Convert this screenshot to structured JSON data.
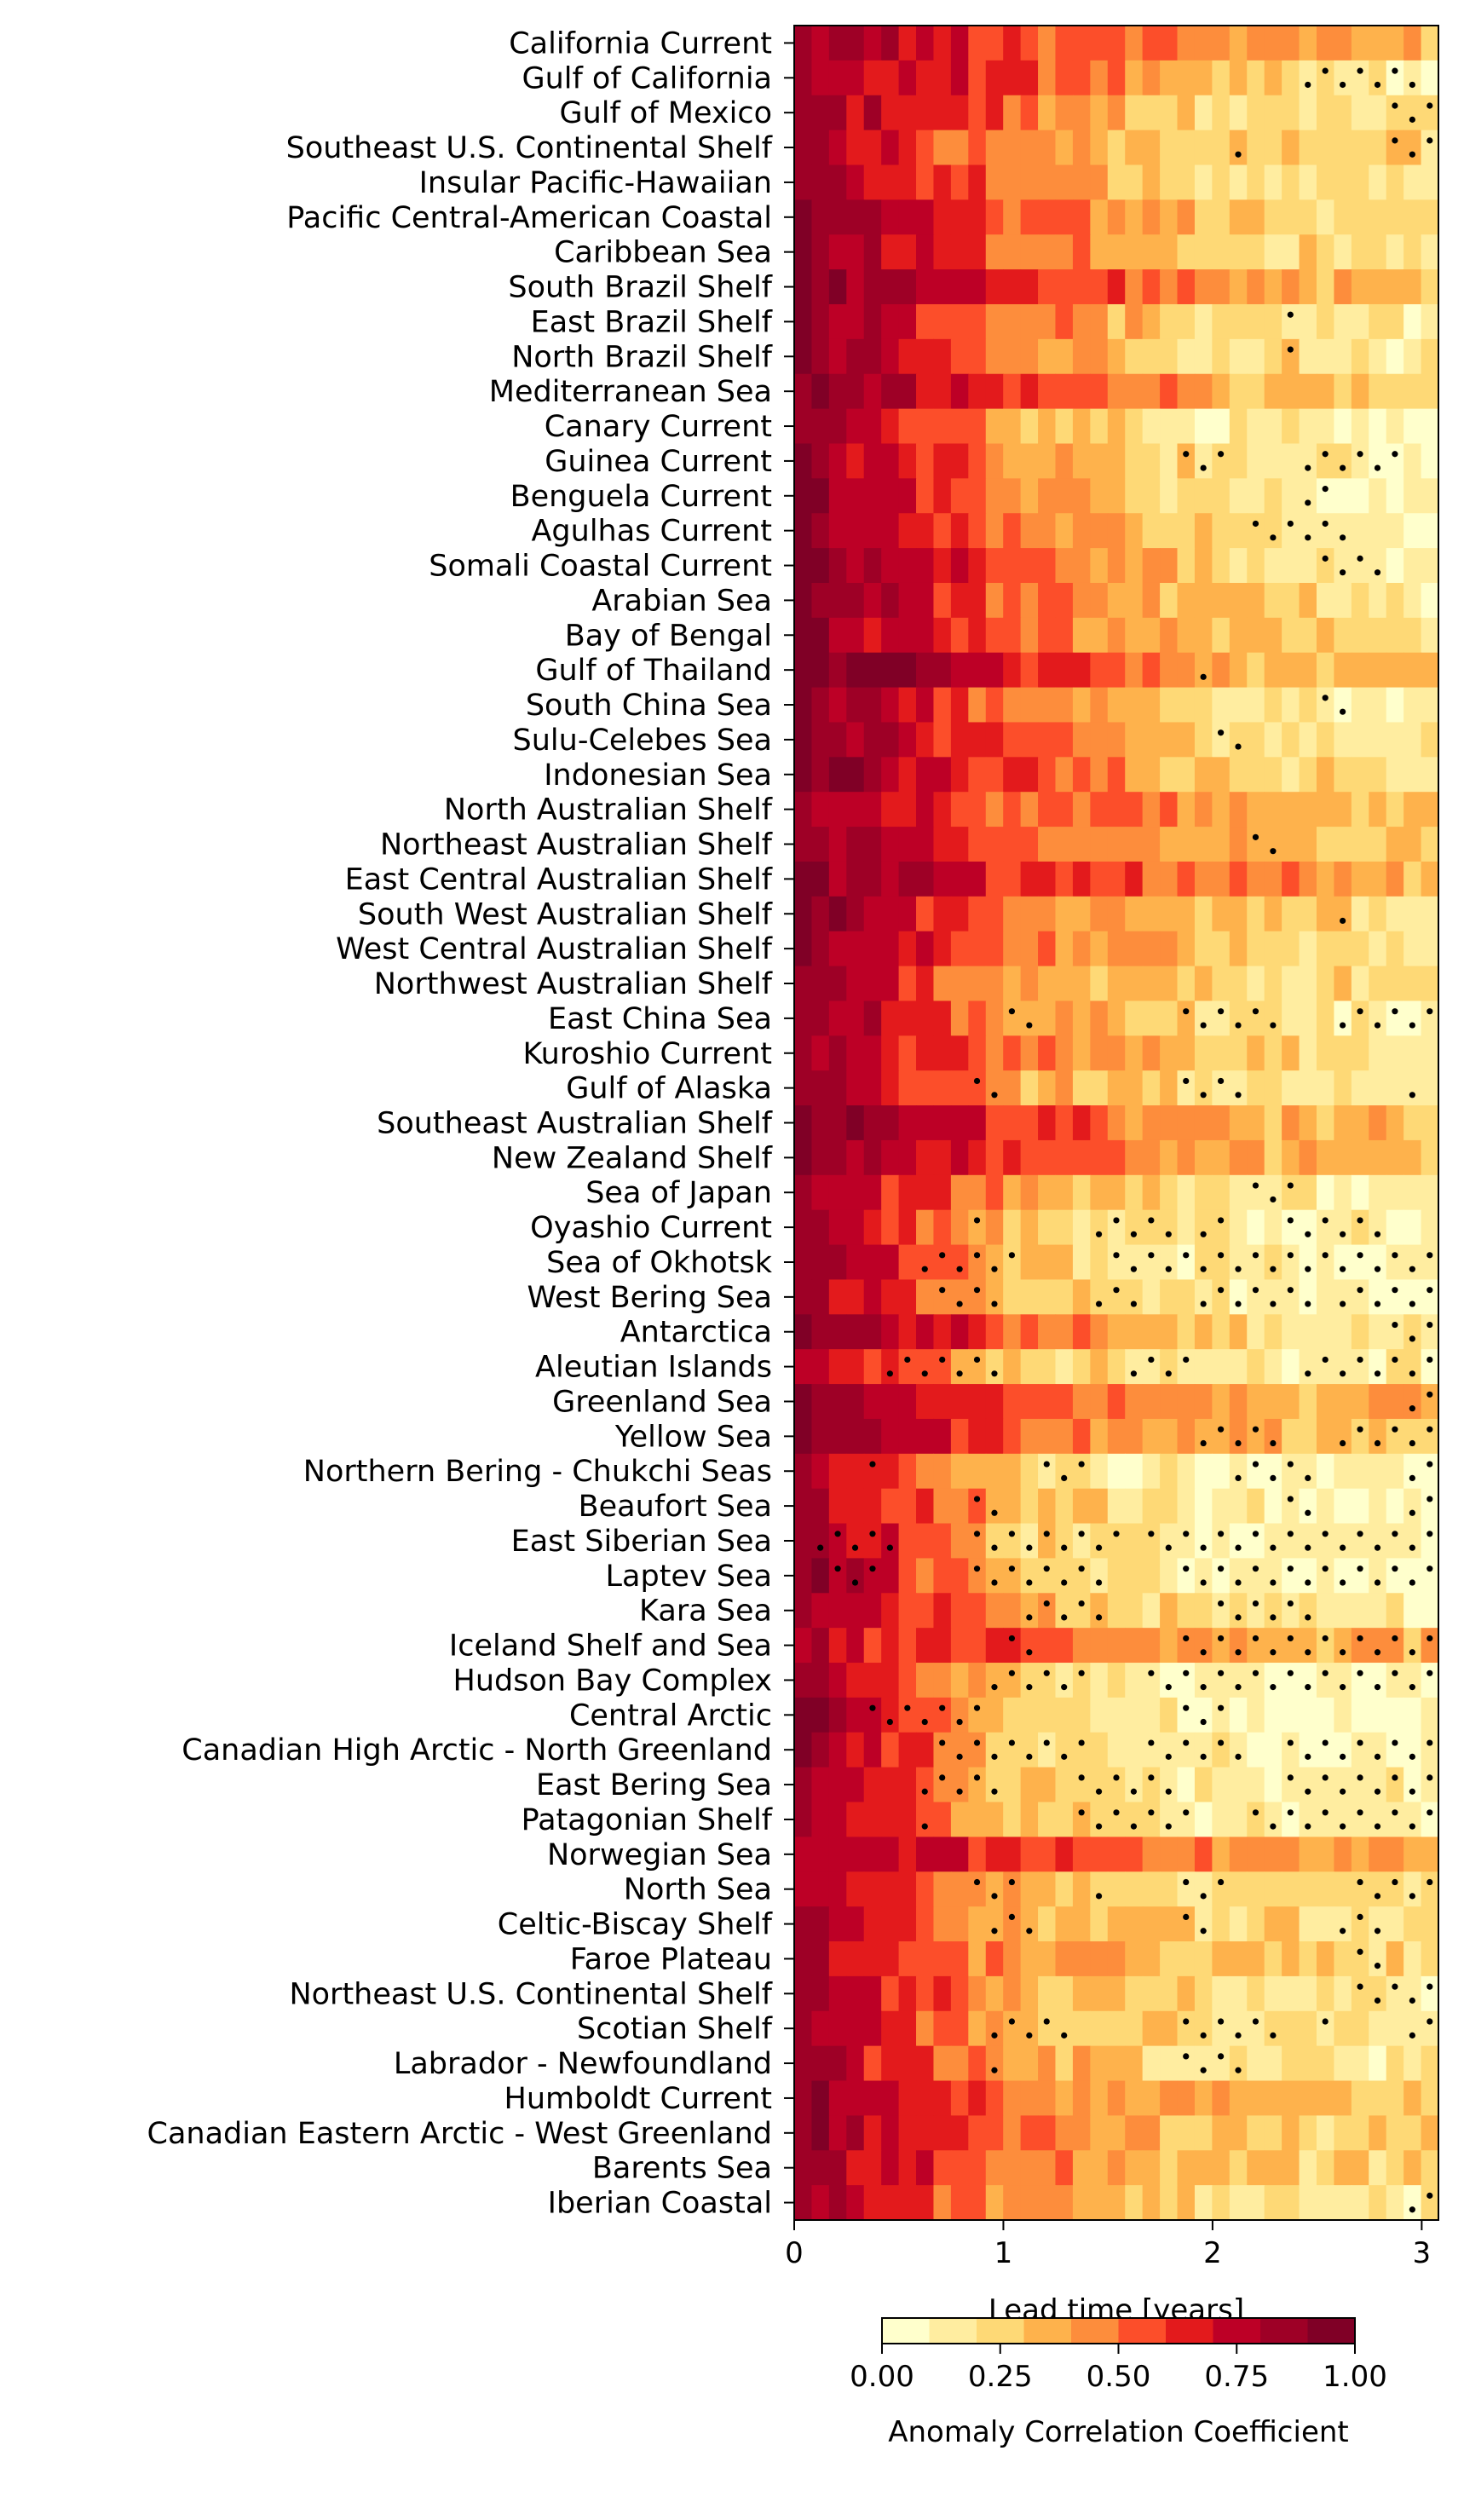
{
  "chart_data": {
    "type": "heatmap",
    "xlabel": "Lead time [years]",
    "x_ticks": [
      0,
      1,
      2,
      3
    ],
    "xlim": [
      0,
      3.08
    ],
    "lead_step_years": 0.0833,
    "colorbar": {
      "label": "Anomaly Correlation Coefficient",
      "ticks": [
        "0.00",
        "0.25",
        "0.50",
        "0.75",
        "1.00"
      ],
      "range": [
        0,
        1
      ],
      "colors": [
        "#ffffcc",
        "#ffeda0",
        "#fed976",
        "#feb24c",
        "#fd8d3c",
        "#fc4e2a",
        "#e31a1c",
        "#bd0026",
        "#9e0026",
        "#800026"
      ]
    },
    "regions": [
      "California Current",
      "Gulf of California",
      "Gulf of Mexico",
      "Southeast U.S. Continental Shelf",
      "Insular Pacific-Hawaiian",
      "Pacific Central-American Coastal",
      "Caribbean Sea",
      "South Brazil Shelf",
      "East Brazil Shelf",
      "North Brazil Shelf",
      "Mediterranean Sea",
      "Canary Current",
      "Guinea Current",
      "Benguela Current",
      "Agulhas Current",
      "Somali Coastal Current",
      "Arabian Sea",
      "Bay of Bengal",
      "Gulf of Thailand",
      "South China Sea",
      "Sulu-Celebes Sea",
      "Indonesian Sea",
      "North Australian Shelf",
      "Northeast Australian Shelf",
      "East Central Australian Shelf",
      "South West Australian Shelf",
      "West Central Australian Shelf",
      "Northwest Australian Shelf",
      "East China Sea",
      "Kuroshio Current",
      "Gulf of Alaska",
      "Southeast Australian Shelf",
      "New Zealand Shelf",
      "Sea of Japan",
      "Oyashio Current",
      "Sea of Okhotsk",
      "West Bering Sea",
      "Antarctica",
      "Aleutian Islands",
      "Greenland Sea",
      "Yellow Sea",
      "Northern Bering - Chukchi Seas",
      "Beaufort Sea",
      "East Siberian Sea",
      "Laptev Sea",
      "Kara Sea",
      "Iceland Shelf and Sea",
      "Hudson Bay Complex",
      "Central Arctic",
      "Canadian High Arctic - North Greenland",
      "East Bering Sea",
      "Patagonian Shelf",
      "Norwegian Sea",
      "North Sea",
      "Celtic-Biscay Shelf",
      "Faroe Plateau",
      "Northeast U.S. Continental Shelf",
      "Scotian Shelf",
      "Labrador - Newfoundland",
      "Humboldt Current",
      "Canadian Eastern Arctic - West Greenland",
      "Barents Sea",
      "Iberian Coastal"
    ],
    "acc_profiles": [
      [
        0.88,
        0.6,
        0.45,
        0.35
      ],
      [
        0.85,
        0.6,
        0.3,
        0.15
      ],
      [
        0.9,
        0.5,
        0.25,
        0.15
      ],
      [
        0.85,
        0.45,
        0.25,
        0.25
      ],
      [
        0.9,
        0.5,
        0.25,
        0.2
      ],
      [
        0.92,
        0.55,
        0.3,
        0.2
      ],
      [
        0.92,
        0.55,
        0.3,
        0.15
      ],
      [
        0.92,
        0.65,
        0.45,
        0.3
      ],
      [
        0.92,
        0.5,
        0.25,
        0.15
      ],
      [
        0.92,
        0.5,
        0.25,
        0.15
      ],
      [
        0.88,
        0.62,
        0.4,
        0.25
      ],
      [
        0.88,
        0.4,
        0.15,
        0.12
      ],
      [
        0.92,
        0.45,
        0.2,
        0.1
      ],
      [
        0.92,
        0.45,
        0.2,
        0.1
      ],
      [
        0.92,
        0.45,
        0.25,
        0.12
      ],
      [
        0.92,
        0.6,
        0.25,
        0.1
      ],
      [
        0.92,
        0.55,
        0.3,
        0.15
      ],
      [
        0.92,
        0.55,
        0.3,
        0.2
      ],
      [
        0.95,
        0.7,
        0.4,
        0.25
      ],
      [
        0.92,
        0.5,
        0.2,
        0.1
      ],
      [
        0.92,
        0.55,
        0.25,
        0.15
      ],
      [
        0.92,
        0.6,
        0.3,
        0.2
      ],
      [
        0.9,
        0.55,
        0.4,
        0.25
      ],
      [
        0.88,
        0.55,
        0.35,
        0.3
      ],
      [
        0.92,
        0.65,
        0.5,
        0.3
      ],
      [
        0.92,
        0.5,
        0.3,
        0.2
      ],
      [
        0.92,
        0.5,
        0.3,
        0.2
      ],
      [
        0.9,
        0.4,
        0.25,
        0.2
      ],
      [
        0.88,
        0.45,
        0.2,
        0.15
      ],
      [
        0.88,
        0.5,
        0.3,
        0.2
      ],
      [
        0.85,
        0.4,
        0.2,
        0.15
      ],
      [
        0.95,
        0.6,
        0.4,
        0.3
      ],
      [
        0.95,
        0.6,
        0.4,
        0.3
      ],
      [
        0.85,
        0.4,
        0.2,
        0.15
      ],
      [
        0.85,
        0.35,
        0.15,
        0.1
      ],
      [
        0.85,
        0.35,
        0.15,
        0.1
      ],
      [
        0.85,
        0.3,
        0.15,
        0.1
      ],
      [
        0.95,
        0.55,
        0.25,
        0.2
      ],
      [
        0.8,
        0.3,
        0.15,
        0.12
      ],
      [
        0.92,
        0.6,
        0.4,
        0.35
      ],
      [
        0.92,
        0.55,
        0.35,
        0.25
      ],
      [
        0.85,
        0.25,
        0.12,
        0.1
      ],
      [
        0.88,
        0.35,
        0.15,
        0.12
      ],
      [
        0.9,
        0.3,
        0.12,
        0.1
      ],
      [
        0.9,
        0.35,
        0.12,
        0.1
      ],
      [
        0.9,
        0.4,
        0.2,
        0.15
      ],
      [
        0.75,
        0.55,
        0.4,
        0.35
      ],
      [
        0.85,
        0.3,
        0.12,
        0.08
      ],
      [
        0.95,
        0.3,
        0.1,
        0.08
      ],
      [
        0.95,
        0.3,
        0.12,
        0.1
      ],
      [
        0.85,
        0.3,
        0.15,
        0.12
      ],
      [
        0.85,
        0.3,
        0.12,
        0.12
      ],
      [
        0.8,
        0.6,
        0.45,
        0.4
      ],
      [
        0.8,
        0.4,
        0.2,
        0.2
      ],
      [
        0.85,
        0.4,
        0.25,
        0.2
      ],
      [
        0.85,
        0.4,
        0.3,
        0.25
      ],
      [
        0.85,
        0.4,
        0.25,
        0.15
      ],
      [
        0.85,
        0.4,
        0.2,
        0.2
      ],
      [
        0.85,
        0.4,
        0.2,
        0.15
      ],
      [
        0.9,
        0.5,
        0.4,
        0.3
      ],
      [
        0.88,
        0.5,
        0.3,
        0.25
      ],
      [
        0.9,
        0.5,
        0.3,
        0.25
      ],
      [
        0.88,
        0.4,
        0.2,
        0.15
      ]
    ],
    "stipple_spans": [
      [],
      [
        [
          2.4,
          3.0
        ]
      ],
      [
        [
          2.8,
          3.08
        ]
      ],
      [
        [
          2.1,
          2.2
        ],
        [
          2.85,
          3.08
        ]
      ],
      [],
      [],
      [],
      [],
      [
        [
          2.3,
          2.4
        ]
      ],
      [
        [
          2.3,
          2.4
        ]
      ],
      [],
      [],
      [
        [
          1.8,
          2.1
        ],
        [
          2.4,
          2.9
        ]
      ],
      [
        [
          2.4,
          2.6
        ]
      ],
      [
        [
          2.2,
          2.7
        ]
      ],
      [
        [
          2.5,
          2.8
        ]
      ],
      [],
      [],
      [
        [
          1.9,
          2.0
        ]
      ],
      [
        [
          2.5,
          2.7
        ]
      ],
      [
        [
          2.0,
          2.2
        ]
      ],
      [],
      [],
      [
        [
          2.2,
          2.3
        ]
      ],
      [],
      [
        [
          2.6,
          2.7
        ]
      ],
      [],
      [],
      [
        [
          1.0,
          1.2
        ],
        [
          1.8,
          2.3
        ],
        [
          2.6,
          3.08
        ]
      ],
      [],
      [
        [
          0.8,
          1.0
        ],
        [
          1.8,
          2.2
        ],
        [
          2.9,
          3.0
        ]
      ],
      [],
      [],
      [
        [
          2.2,
          2.4
        ]
      ],
      [
        [
          0.8,
          0.9
        ],
        [
          1.4,
          1.8
        ],
        [
          1.9,
          2.1
        ],
        [
          2.3,
          2.8
        ]
      ],
      [
        [
          0.6,
          1.1
        ],
        [
          1.5,
          3.08
        ]
      ],
      [
        [
          0.7,
          1.0
        ],
        [
          1.4,
          1.7
        ],
        [
          1.9,
          2.5
        ],
        [
          2.6,
          3.08
        ]
      ],
      [
        [
          2.8,
          3.08
        ]
      ],
      [
        [
          0.4,
          1.0
        ],
        [
          1.6,
          1.9
        ],
        [
          2.4,
          3.08
        ]
      ],
      [
        [
          2.9,
          3.08
        ]
      ],
      [
        [
          1.9,
          2.3
        ],
        [
          2.6,
          3.08
        ]
      ],
      [
        [
          0.3,
          0.4
        ],
        [
          1.2,
          1.4
        ],
        [
          2.1,
          2.5
        ],
        [
          2.9,
          3.08
        ]
      ],
      [
        [
          0.8,
          1.0
        ],
        [
          2.3,
          2.5
        ],
        [
          2.9,
          3.08
        ]
      ],
      [
        [
          0.1,
          0.5
        ],
        [
          0.8,
          1.6
        ],
        [
          1.7,
          3.08
        ]
      ],
      [
        [
          0.2,
          0.4
        ],
        [
          0.8,
          1.5
        ],
        [
          1.8,
          3.08
        ]
      ],
      [
        [
          1.1,
          1.5
        ],
        [
          2.0,
          2.5
        ]
      ],
      [
        [
          1.0,
          1.2
        ],
        [
          1.8,
          3.08
        ]
      ],
      [
        [
          0.9,
          1.4
        ],
        [
          1.7,
          3.08
        ]
      ],
      [
        [
          0.3,
          0.9
        ],
        [
          1.8,
          2.1
        ]
      ],
      [
        [
          0.7,
          1.2
        ],
        [
          1.2,
          1.4
        ],
        [
          1.7,
          2.2
        ],
        [
          2.3,
          3.08
        ]
      ],
      [
        [
          0.6,
          1.0
        ],
        [
          1.3,
          1.8
        ],
        [
          2.3,
          3.08
        ]
      ],
      [
        [
          0.6,
          0.7
        ],
        [
          1.3,
          1.9
        ],
        [
          2.2,
          3.08
        ]
      ],
      [],
      [
        [
          0.8,
          1.1
        ],
        [
          1.4,
          1.5
        ],
        [
          1.8,
          2.1
        ],
        [
          2.7,
          3.08
        ]
      ],
      [
        [
          0.9,
          1.2
        ],
        [
          1.8,
          2.0
        ],
        [
          2.6,
          2.8
        ]
      ],
      [
        [
          2.7,
          2.8
        ]
      ],
      [
        [
          2.7,
          3.08
        ]
      ],
      [
        [
          0.9,
          1.3
        ],
        [
          1.8,
          2.3
        ],
        [
          2.5,
          2.6
        ],
        [
          2.9,
          3.08
        ]
      ],
      [
        [
          0.9,
          1.0
        ],
        [
          1.8,
          2.2
        ]
      ],
      [],
      [],
      [],
      [
        [
          2.9,
          3.08
        ]
      ]
    ]
  }
}
